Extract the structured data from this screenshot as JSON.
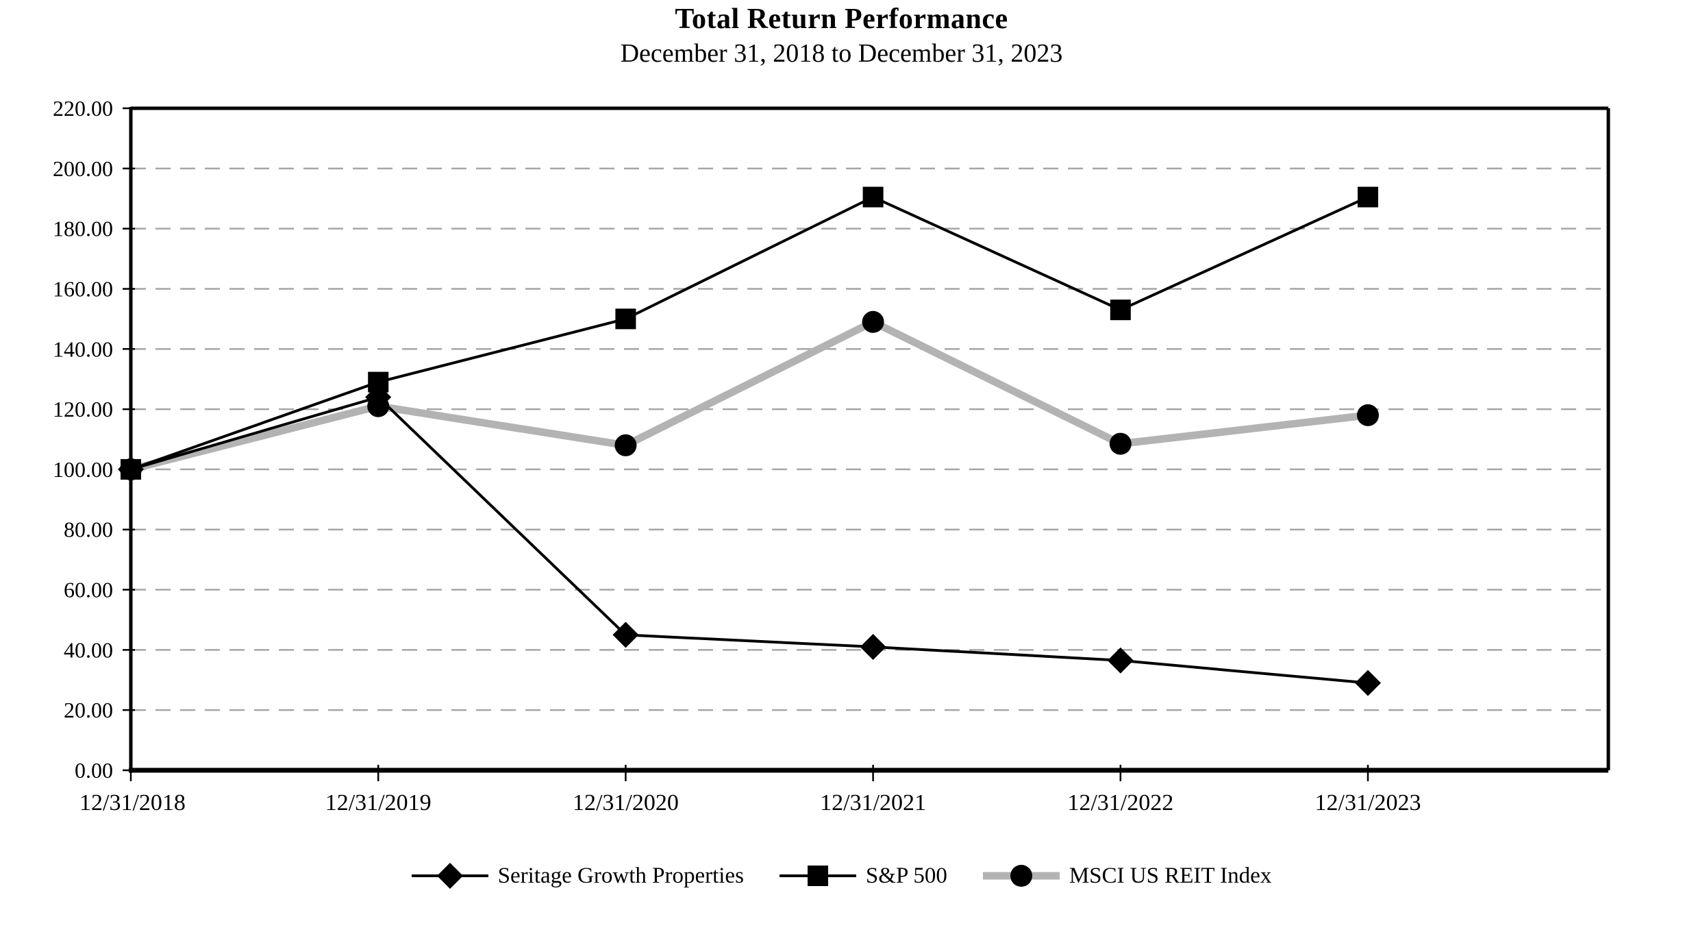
{
  "title": "Total Return Performance",
  "subtitle": "December 31, 2018 to December 31, 2023",
  "colors": {
    "series_black": "#000000",
    "msci_line_gray": "#b3b3b3",
    "gridline_gray": "#a6a6a6",
    "axis_black": "#000000",
    "background": "#ffffff"
  },
  "chart_data": {
    "type": "line",
    "categories": [
      "12/31/2018",
      "12/31/2019",
      "12/31/2020",
      "12/31/2021",
      "12/31/2022",
      "12/31/2023"
    ],
    "series": [
      {
        "name": "Seritage Growth Properties",
        "marker": "diamond",
        "marker_color": "#000000",
        "line_color": "#000000",
        "line_width": 4,
        "values": [
          100.0,
          124.0,
          45.0,
          41.0,
          36.5,
          29.0
        ]
      },
      {
        "name": "S&P 500",
        "marker": "square",
        "marker_color": "#000000",
        "line_color": "#000000",
        "line_width": 4,
        "values": [
          100.0,
          129.0,
          150.0,
          190.5,
          153.0,
          190.5
        ]
      },
      {
        "name": "MSCI US REIT Index",
        "marker": "circle",
        "marker_color": "#000000",
        "line_color": "#b3b3b3",
        "line_width": 11,
        "values": [
          100.0,
          121.0,
          108.0,
          149.0,
          108.5,
          118.0
        ]
      }
    ],
    "title": "Total Return Performance",
    "subtitle": "December 31, 2018 to December 31, 2023",
    "xlabel": "",
    "ylabel": "",
    "ylim": [
      0,
      220
    ],
    "ytick_step": 20,
    "ytick_labels": [
      "0.00",
      "20.00",
      "40.00",
      "60.00",
      "80.00",
      "100.00",
      "120.00",
      "140.00",
      "160.00",
      "180.00",
      "200.00",
      "220.00"
    ],
    "grid": "horizontal-dashed",
    "legend_position": "bottom",
    "plot_order_note": "gray MSCI line drawn beneath black lines"
  }
}
